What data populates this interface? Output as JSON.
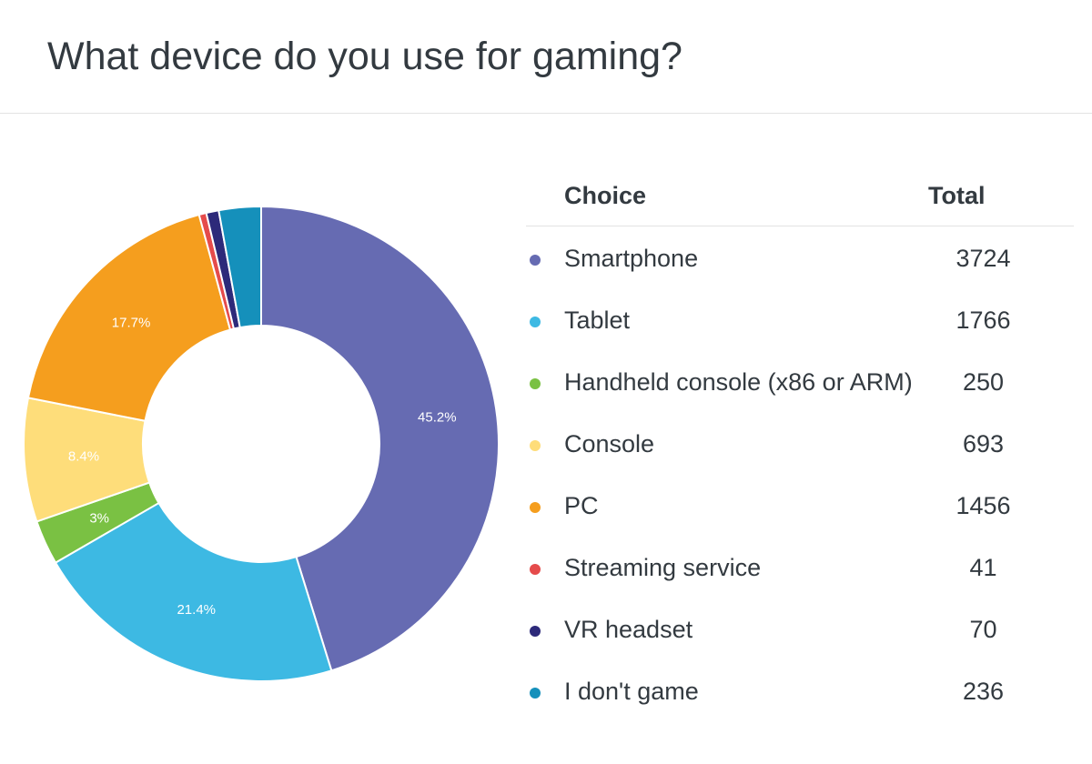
{
  "header": {
    "title": "What device do you use for gaming?"
  },
  "legend": {
    "choice_header": "Choice",
    "total_header": "Total"
  },
  "chart_data": {
    "type": "pie",
    "title": "What device do you use for gaming?",
    "donut": true,
    "start_angle_deg": 0,
    "direction": "clockwise",
    "categories": [
      "Smartphone",
      "Tablet",
      "Handheld console (x86 or ARM)",
      "Console",
      "PC",
      "Streaming service",
      "VR headset",
      "I don't game"
    ],
    "values": [
      3724,
      1766,
      250,
      693,
      1456,
      41,
      70,
      236
    ],
    "colors": [
      "#666bb2",
      "#3db9e3",
      "#7ac143",
      "#fedd7a",
      "#f59e1e",
      "#e54b4b",
      "#2d2a7a",
      "#1590bb"
    ],
    "percent_labels": [
      "45.2%",
      "21.4%",
      "3%",
      "8.4%",
      "17.7%",
      "",
      "",
      ""
    ]
  }
}
